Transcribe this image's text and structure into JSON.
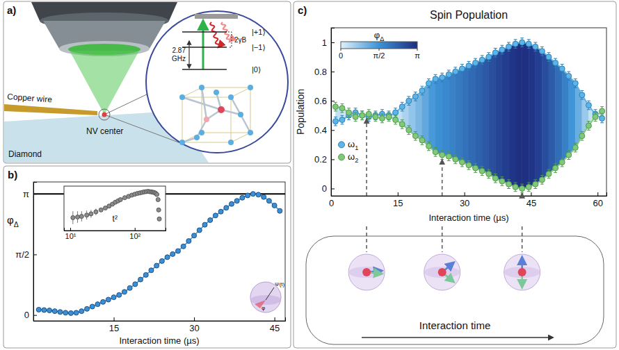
{
  "diagram": {
    "panel_label": "a)",
    "labels": {
      "copper_wire": "Copper wire",
      "nv_center": "NV center",
      "diamond": "Diamond"
    },
    "levels": {
      "plus": "|+1⟩",
      "minus": "|−1⟩",
      "zero": "|0⟩"
    },
    "splitting": "2γB",
    "frequency": [
      "2.87",
      "GHz"
    ]
  },
  "chart_data": [
    {
      "panel_label": "b)",
      "type": "line",
      "marker": "circle",
      "color": "#3c8fd0",
      "x_label": "Interaction time (µs)",
      "y_label": "φΔ",
      "xlim": [
        0,
        47
      ],
      "xticks": [
        15,
        30,
        45
      ],
      "ylim": [
        -0.15,
        3.45
      ],
      "yticks": [
        0,
        {
          "value": 1.5708,
          "label": "π/2"
        },
        {
          "value": 3.1416,
          "label": "π"
        }
      ],
      "reference_line": 3.1416,
      "x": [
        1,
        2,
        3,
        4,
        5,
        6,
        7,
        8,
        9,
        10,
        11,
        12,
        13,
        14,
        15,
        16,
        17,
        18,
        19,
        20,
        21,
        22,
        23,
        24,
        25,
        26,
        27,
        28,
        29,
        30,
        31,
        32,
        33,
        34,
        35,
        36,
        37,
        38,
        39,
        40,
        41,
        42,
        43,
        44,
        45,
        46
      ],
      "values": [
        0.14,
        0.13,
        0.12,
        0.1,
        0.08,
        0.06,
        0.05,
        0.06,
        0.1,
        0.16,
        0.22,
        0.28,
        0.34,
        0.4,
        0.46,
        0.52,
        0.6,
        0.7,
        0.8,
        0.92,
        1.04,
        1.16,
        1.28,
        1.4,
        1.5,
        1.58,
        1.66,
        1.78,
        1.92,
        2.06,
        2.2,
        2.34,
        2.46,
        2.58,
        2.68,
        2.78,
        2.88,
        2.96,
        3.04,
        3.1,
        3.14,
        3.12,
        3.06,
        2.96,
        2.84,
        2.7
      ],
      "annotations": {
        "state": "Ψ(t)",
        "angle": "φ"
      }
    },
    {
      "type": "scatter",
      "marker": "circle",
      "color": "#8c8c8c",
      "log": "x",
      "tick_labels": "x",
      "xlim": [
        8,
        300
      ],
      "xticks": [
        {
          "value": 10,
          "label": "10¹"
        },
        {
          "value": 100,
          "label": "10²"
        }
      ],
      "ylim": [
        0,
        3.45
      ],
      "x": [
        11,
        13,
        15,
        18,
        21,
        25,
        30,
        35,
        40,
        45,
        50,
        55,
        60,
        70,
        80,
        90,
        100,
        110,
        120,
        130,
        140,
        150,
        160,
        170,
        180,
        190,
        200,
        210,
        220,
        230,
        235,
        240
      ],
      "values": [
        1.0,
        1.05,
        1.1,
        1.2,
        1.3,
        1.45,
        1.6,
        1.75,
        1.9,
        2.05,
        2.2,
        2.3,
        2.4,
        2.55,
        2.65,
        2.75,
        2.82,
        2.88,
        2.92,
        2.96,
        3.0,
        3.02,
        3.04,
        3.02,
        3.0,
        2.98,
        2.95,
        2.9,
        2.8,
        2.4,
        1.6,
        0.9
      ],
      "errors": [
        0.5,
        0.45,
        0.4,
        0.35,
        0.3,
        0.25,
        0.05,
        0.05,
        0.05,
        0.05,
        0.05,
        0.05,
        0.05,
        0.05,
        0.05,
        0.05,
        0.05,
        0.05,
        0.05,
        0.05,
        0.05,
        0.05,
        0.05,
        0.05,
        0.05,
        0.05,
        0.05,
        0.05,
        0.05,
        0.05,
        0.05,
        0.05
      ],
      "annotations": {
        "scaling": "t²"
      }
    },
    {
      "panel_label": "c)",
      "type": "line",
      "title": "Spin Population",
      "x_label": "Interaction time (µs)",
      "y_label": "Population",
      "xlim": [
        0,
        62
      ],
      "xticks": [
        0,
        15,
        30,
        45,
        60
      ],
      "ylim": [
        -0.05,
        1.1
      ],
      "yticks": [
        0,
        0.2,
        0.4,
        0.6,
        0.8,
        1
      ],
      "legend": "lower left",
      "x": [
        1,
        2.5,
        4,
        5.5,
        7,
        8.5,
        10,
        11.5,
        13,
        14.5,
        16,
        17.5,
        19,
        20.5,
        22,
        23.5,
        25,
        26.5,
        28,
        29.5,
        31,
        32.5,
        34,
        35.5,
        37,
        38.5,
        40,
        41.5,
        43,
        44.5,
        46,
        47.5,
        49,
        50.5,
        52,
        53.5,
        55,
        56.5,
        58,
        59.5,
        61
      ],
      "series": [
        {
          "name": "ω1",
          "color": "#5db4e6",
          "marker": "circle",
          "values": [
            0.46,
            0.47,
            0.5,
            0.52,
            0.5,
            0.49,
            0.5,
            0.51,
            0.5,
            0.52,
            0.56,
            0.6,
            0.63,
            0.67,
            0.72,
            0.75,
            0.76,
            0.78,
            0.8,
            0.82,
            0.84,
            0.86,
            0.88,
            0.9,
            0.93,
            0.95,
            0.97,
            0.99,
            1.0,
            0.99,
            0.97,
            0.94,
            0.9,
            0.86,
            0.82,
            0.77,
            0.72,
            0.64,
            0.57,
            0.51,
            0.48
          ],
          "errors": [
            0.03,
            0.03,
            0.03,
            0.03,
            0.03,
            0.03,
            0.03,
            0.03,
            0.03,
            0.03,
            0.03,
            0.03,
            0.03,
            0.03,
            0.03,
            0.03,
            0.03,
            0.03,
            0.03,
            0.03,
            0.03,
            0.03,
            0.03,
            0.03,
            0.03,
            0.03,
            0.03,
            0.03,
            0.03,
            0.03,
            0.03,
            0.03,
            0.03,
            0.03,
            0.03,
            0.03,
            0.03,
            0.03,
            0.03,
            0.03,
            0.03
          ]
        },
        {
          "name": "ω2",
          "color": "#82c87a",
          "marker": "circle",
          "values": [
            0.56,
            0.55,
            0.52,
            0.49,
            0.5,
            0.51,
            0.49,
            0.48,
            0.49,
            0.47,
            0.44,
            0.4,
            0.36,
            0.33,
            0.29,
            0.25,
            0.23,
            0.22,
            0.2,
            0.18,
            0.16,
            0.14,
            0.12,
            0.1,
            0.07,
            0.05,
            0.03,
            0.01,
            0.0,
            0.01,
            0.03,
            0.06,
            0.1,
            0.14,
            0.18,
            0.23,
            0.28,
            0.36,
            0.43,
            0.49,
            0.53
          ],
          "errors": [
            0.03,
            0.03,
            0.03,
            0.03,
            0.03,
            0.03,
            0.03,
            0.03,
            0.03,
            0.03,
            0.03,
            0.03,
            0.03,
            0.03,
            0.03,
            0.03,
            0.03,
            0.03,
            0.03,
            0.03,
            0.03,
            0.03,
            0.03,
            0.03,
            0.03,
            0.03,
            0.03,
            0.03,
            0.03,
            0.03,
            0.03,
            0.03,
            0.03,
            0.03,
            0.03,
            0.03,
            0.03,
            0.03,
            0.03,
            0.03,
            0.03
          ]
        }
      ],
      "colorbar": {
        "label": "φΔ",
        "range": [
          0,
          3.1416
        ],
        "ticks": [
          0,
          {
            "value": 1.5708,
            "label": "π/2"
          },
          {
            "value": 3.1416,
            "label": "π"
          }
        ],
        "colors": [
          "#dff1fb",
          "#3d92d6",
          "#1e2d80"
        ]
      },
      "vlines": [
        8,
        25,
        43
      ],
      "annotations": {
        "timeline": "Interaction time"
      }
    }
  ]
}
